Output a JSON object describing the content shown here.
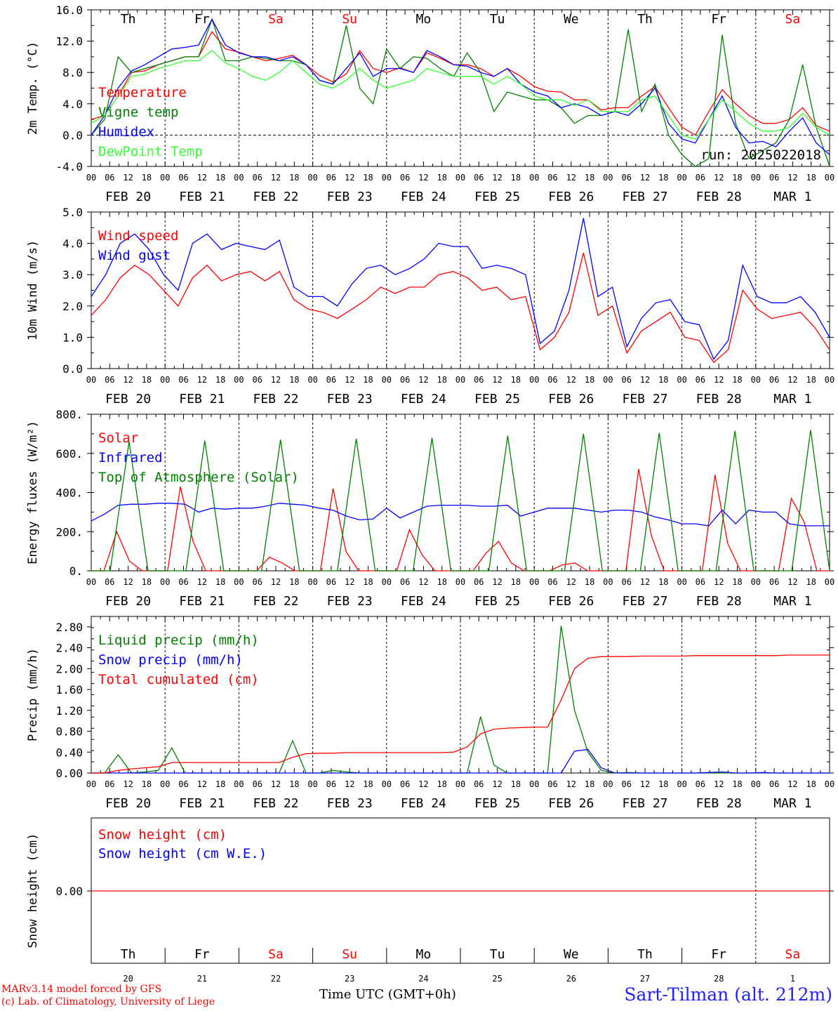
{
  "colors": {
    "red": "#ff0000",
    "green": "#008000",
    "blue": "#0000ff",
    "lightgreen": "#33ff33",
    "weekend": "#ff0000",
    "weekday": "#000000"
  },
  "day_labels": [
    {
      "name": "Th",
      "weekend": false
    },
    {
      "name": "Fr",
      "weekend": false
    },
    {
      "name": "Sa",
      "weekend": true
    },
    {
      "name": "Su",
      "weekend": true
    },
    {
      "name": "Mo",
      "weekend": false
    },
    {
      "name": "Tu",
      "weekend": false
    },
    {
      "name": "We",
      "weekend": false
    },
    {
      "name": "Th",
      "weekend": false
    },
    {
      "name": "Fr",
      "weekend": false
    },
    {
      "name": "Sa",
      "weekend": true
    }
  ],
  "date_labels": [
    "FEB 20",
    "FEB 21",
    "FEB 22",
    "FEB 23",
    "FEB 24",
    "FEB 25",
    "FEB 26",
    "FEB 27",
    "FEB 28",
    "MAR  1"
  ],
  "date_numbers": [
    "20",
    "21",
    "22",
    "23",
    "24",
    "25",
    "26",
    "27",
    "28",
    "1"
  ],
  "hour_labels": [
    "00",
    "06",
    "12",
    "18"
  ],
  "footer": {
    "left_line1": "MARv3.14 model forced by GFS",
    "left_line2": "(c) Lab. of Climatology, University of Liege",
    "axis_title": "Time UTC (GMT+0h)",
    "station": "Sart-Tilman (alt. 212m)"
  },
  "chart_data": [
    {
      "type": "line",
      "name": "temperature-panel",
      "ylabel": "2m Temp. (°C)",
      "ylim": [
        -4,
        16
      ],
      "yticks": [
        "-4.0",
        "0.0",
        "4.0",
        "8.0",
        "12.0",
        "16.0"
      ],
      "zero_line": true,
      "run_label": "run: 2025022018",
      "x_unit": "hours since FEB 20 00 UTC",
      "x_step": 6,
      "series": [
        {
          "name": "Temperature",
          "color": "#ff0000",
          "values": [
            2,
            2.5,
            5,
            8,
            8.2,
            9,
            9.5,
            10,
            10,
            13.2,
            11,
            10.6,
            10,
            9.5,
            9.8,
            10.2,
            9,
            7.6,
            6.8,
            7.8,
            10.8,
            8.5,
            8,
            8.6,
            8,
            10.5,
            9.8,
            9,
            9,
            8.5,
            7.5,
            8.5,
            7.5,
            6.2,
            5.6,
            5.5,
            4.5,
            4.5,
            3.2,
            3.5,
            3.5,
            5,
            6.2,
            3.5,
            1,
            0,
            3,
            5.8,
            4,
            2.5,
            1.5,
            1.5,
            2,
            3.5,
            1.2,
            0.5
          ]
        },
        {
          "name": "Vigne temp",
          "color": "#008000",
          "values": [
            0,
            2,
            10,
            8,
            8.5,
            9,
            9.5,
            10,
            10,
            14.8,
            9.5,
            9.5,
            10,
            9.8,
            9.5,
            9.5,
            9,
            7,
            6.5,
            14,
            6,
            4,
            11,
            8.5,
            10,
            9.8,
            8.5,
            7.5,
            10.5,
            8,
            3,
            5.5,
            5,
            4.5,
            4.5,
            3.5,
            1.5,
            2.5,
            2.5,
            3,
            13.5,
            3,
            6.5,
            0,
            -2.5,
            -4,
            -3,
            12.8,
            1.5,
            -3,
            -2,
            -1,
            2,
            9,
            1,
            -4
          ]
        },
        {
          "name": "Humidex",
          "color": "#0000ff",
          "values": [
            0,
            2.5,
            6,
            8.2,
            9,
            10,
            11,
            11.2,
            11.5,
            14.8,
            11.5,
            10.5,
            10,
            10,
            9.5,
            10,
            9,
            7,
            6.5,
            8.5,
            10.5,
            7.5,
            8.5,
            8.5,
            8,
            10.8,
            10,
            9,
            8.8,
            8,
            7.5,
            8.5,
            6.5,
            5.5,
            5,
            3.5,
            4,
            3.5,
            2.5,
            3,
            2.5,
            4,
            6,
            1.5,
            -0.5,
            -1,
            2,
            5,
            1,
            -1,
            -0.8,
            -1.5,
            0.5,
            2.2,
            -1,
            -2.5
          ]
        },
        {
          "name": "DewPoint Temp",
          "color": "#33ff33",
          "values": [
            1.5,
            2.5,
            5,
            7.5,
            7.8,
            8.5,
            9,
            9.5,
            9.5,
            10.8,
            9.2,
            8.5,
            7.5,
            7,
            8,
            9.5,
            8,
            6.5,
            6,
            7,
            8.5,
            7,
            6,
            6.5,
            7,
            8.5,
            8,
            7.5,
            7.5,
            7.5,
            6.5,
            7.5,
            6.5,
            5,
            4.5,
            4.5,
            3.8,
            4.5,
            3,
            3,
            3,
            4.5,
            5,
            2.5,
            0,
            -0.5,
            2,
            4.5,
            3,
            1.5,
            0.5,
            0.5,
            1,
            2.8,
            1,
            0
          ]
        }
      ]
    },
    {
      "type": "line",
      "name": "wind-panel",
      "ylabel": "10m Wind (m/s)",
      "ylim": [
        0,
        5
      ],
      "yticks": [
        "0.0",
        "1.0",
        "2.0",
        "3.0",
        "4.0",
        "5.0"
      ],
      "x_unit": "hours since FEB 20 00 UTC",
      "x_step": 6,
      "series": [
        {
          "name": "Wind speed",
          "color": "#ff0000",
          "values": [
            1.7,
            2.2,
            2.9,
            3.3,
            3.0,
            2.5,
            2.0,
            2.9,
            3.3,
            2.8,
            3.0,
            3.1,
            2.8,
            3.1,
            2.2,
            1.9,
            1.8,
            1.6,
            1.9,
            2.2,
            2.6,
            2.4,
            2.6,
            2.6,
            3.0,
            3.1,
            2.9,
            2.5,
            2.6,
            2.2,
            2.3,
            0.6,
            1.0,
            1.8,
            3.7,
            1.7,
            2.0,
            0.5,
            1.2,
            1.5,
            1.8,
            1.0,
            0.9,
            0.2,
            0.6,
            2.5,
            1.9,
            1.6,
            1.7,
            1.8,
            1.3,
            0.6
          ]
        },
        {
          "name": "Wind gust",
          "color": "#0000ff",
          "values": [
            2.3,
            3.0,
            4.0,
            4.3,
            3.8,
            3.0,
            2.5,
            4.0,
            4.3,
            3.8,
            4.0,
            3.9,
            3.8,
            4.1,
            2.6,
            2.3,
            2.3,
            2.0,
            2.7,
            3.2,
            3.3,
            3.0,
            3.2,
            3.5,
            4.0,
            3.9,
            3.9,
            3.2,
            3.3,
            3.2,
            3.0,
            0.8,
            1.2,
            2.5,
            4.8,
            2.3,
            2.6,
            0.7,
            1.6,
            2.1,
            2.2,
            1.5,
            1.4,
            0.3,
            0.9,
            3.3,
            2.3,
            2.1,
            2.1,
            2.3,
            1.8,
            1.0
          ]
        }
      ]
    },
    {
      "type": "line",
      "name": "energy-panel",
      "ylabel": "Energy fluxes (W/m²)",
      "ylim": [
        0,
        800
      ],
      "yticks": [
        "0.",
        "200.",
        "400.",
        "600.",
        "800."
      ],
      "x_unit": "hours since FEB 20 00 UTC",
      "x_step": 6,
      "series": [
        {
          "name": "Solar",
          "color": "#ff0000",
          "values": [
            0,
            0,
            200,
            50,
            0,
            0,
            0,
            430,
            150,
            0,
            0,
            0,
            0,
            0,
            70,
            40,
            0,
            0,
            0,
            420,
            100,
            0,
            0,
            0,
            0,
            210,
            80,
            0,
            0,
            0,
            0,
            90,
            150,
            40,
            0,
            0,
            0,
            30,
            40,
            0,
            0,
            0,
            0,
            520,
            180,
            0,
            0,
            0,
            0,
            490,
            140,
            0,
            0,
            0,
            0,
            370,
            250,
            0,
            0
          ]
        },
        {
          "name": "Infrared",
          "color": "#0000ff",
          "values": [
            255,
            290,
            335,
            340,
            340,
            345,
            345,
            340,
            300,
            320,
            315,
            320,
            320,
            330,
            345,
            340,
            335,
            320,
            310,
            280,
            260,
            265,
            320,
            270,
            300,
            330,
            335,
            335,
            335,
            330,
            330,
            335,
            280,
            300,
            320,
            320,
            320,
            310,
            300,
            310,
            310,
            300,
            275,
            260,
            240,
            240,
            230,
            310,
            240,
            310,
            300,
            300,
            240,
            230,
            230,
            230
          ]
        },
        {
          "name": "Top of Atmosphere (Solar)",
          "color": "#008000",
          "values": [
            0,
            0,
            660,
            0,
            0,
            0,
            665,
            0,
            0,
            0,
            670,
            0,
            0,
            0,
            675,
            0,
            0,
            0,
            680,
            0,
            0,
            0,
            690,
            0,
            0,
            0,
            700,
            0,
            0,
            0,
            705,
            0,
            0,
            0,
            715,
            0,
            0,
            0,
            720,
            0
          ]
        }
      ]
    },
    {
      "type": "line",
      "name": "precip-panel",
      "ylabel": "Precip (mm/h)",
      "ylim": [
        0,
        3.0
      ],
      "yticks": [
        "0.00",
        "0.40",
        "0.80",
        "1.20",
        "1.60",
        "2.00",
        "2.40",
        "2.80"
      ],
      "x_unit": "hours since FEB 20 00 UTC",
      "x_step": 6,
      "series": [
        {
          "name": "Liquid precip (mm/h)",
          "color": "#008000",
          "values": [
            0,
            0,
            0.35,
            0,
            0.02,
            0.05,
            0.48,
            0,
            0,
            0,
            0,
            0,
            0,
            0,
            0,
            0.62,
            0,
            0,
            0.05,
            0.02,
            0,
            0,
            0,
            0,
            0,
            0,
            0,
            0,
            0,
            1.08,
            0.15,
            0,
            0,
            0,
            0,
            2.82,
            1.2,
            0.4,
            0.05,
            0,
            0.01,
            0,
            0,
            0,
            0,
            0,
            0,
            0,
            0,
            0,
            0,
            0,
            0,
            0,
            0,
            0
          ]
        },
        {
          "name": "Snow precip (mm/h)",
          "color": "#0000ff",
          "values": [
            0,
            0,
            0,
            0,
            0,
            0,
            0,
            0,
            0,
            0,
            0,
            0,
            0,
            0,
            0,
            0,
            0,
            0,
            0,
            0,
            0,
            0,
            0,
            0,
            0,
            0,
            0,
            0,
            0,
            0,
            0,
            0,
            0,
            0,
            0,
            0,
            0.42,
            0.45,
            0.1,
            0,
            0,
            0,
            0,
            0,
            0,
            0,
            0.01,
            0.02,
            0,
            0,
            0.01,
            0,
            0,
            0,
            0,
            0
          ]
        },
        {
          "name": "Total cumulated (cm)",
          "color": "#ff0000",
          "values": [
            0,
            0,
            0.05,
            0.08,
            0.1,
            0.12,
            0.2,
            0.2,
            0.2,
            0.2,
            0.2,
            0.2,
            0.2,
            0.2,
            0.2,
            0.3,
            0.37,
            0.38,
            0.38,
            0.39,
            0.39,
            0.39,
            0.39,
            0.39,
            0.39,
            0.39,
            0.39,
            0.4,
            0.5,
            0.75,
            0.84,
            0.86,
            0.87,
            0.88,
            0.88,
            1.4,
            2.0,
            2.2,
            2.23,
            2.23,
            2.23,
            2.24,
            2.24,
            2.24,
            2.24,
            2.25,
            2.25,
            2.25,
            2.25,
            2.25,
            2.25,
            2.25,
            2.26,
            2.26,
            2.26,
            2.26
          ]
        }
      ]
    },
    {
      "type": "line",
      "name": "snow-panel",
      "ylabel": "Snow height (cm)",
      "yticks": [
        "0.00"
      ],
      "series": [
        {
          "name": "Snow height (cm)",
          "color": "#ff0000",
          "values": [
            0,
            0
          ]
        },
        {
          "name": "Snow height (cm W.E.)",
          "color": "#0000ff",
          "values": []
        }
      ]
    }
  ]
}
